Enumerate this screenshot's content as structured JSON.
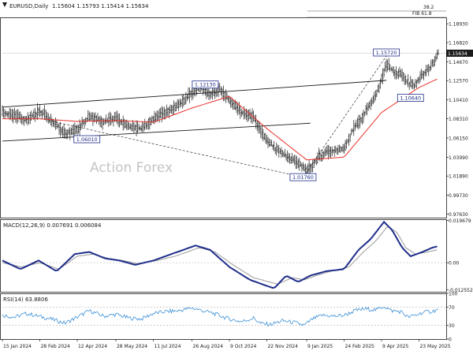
{
  "header": {
    "title": "EURUSD,Daily",
    "ohlc": "1.15604 1.15793 1.15414 1.15634"
  },
  "watermark": "Action Forex",
  "colors": {
    "price": "#1a1a1a",
    "ma": "#e8312a",
    "macd": "#1f2e8a",
    "signal": "#9a9a9a",
    "rsi": "#3b8fd6",
    "callout_border": "#1f2e8a",
    "grid": "#b0b0b0",
    "last_price_bg": "#1a1a1a",
    "last_price_fg": "#ffffff"
  },
  "chart_data": [
    {
      "type": "line",
      "panel": "price",
      "title": "EURUSD,Daily",
      "ylim": [
        0.9723,
        1.1965
      ],
      "y_ticks": [
        "1.18930",
        "1.16820",
        "1.14670",
        "1.12570",
        "1.10410",
        "1.08310",
        "1.06150",
        "1.03990",
        "1.01890",
        "0.99730",
        "0.97630"
      ],
      "y_tick_values": [
        1.1893,
        1.1682,
        1.1467,
        1.1257,
        1.1041,
        1.0831,
        1.0615,
        1.0399,
        1.0189,
        0.9973,
        0.9763
      ],
      "x_ticks": [
        "15 Jan 2024",
        "28 Feb 2024",
        "12 Apr 2024",
        "28 May 2024",
        "11 Jul 2024",
        "26 Aug 2024",
        "9 Oct 2024",
        "22 Nov 2024",
        "9 Jan 2025",
        "24 Feb 2025",
        "9 Apr 2025",
        "23 May 2025"
      ],
      "x_tick_index": [
        0,
        31,
        62,
        94,
        125,
        157,
        188,
        219,
        252,
        283,
        314,
        345
      ],
      "bar_count": 362,
      "series": [
        {
          "kind": "price",
          "anchors": [
            [
              0,
              1.09
            ],
            [
              8,
              1.087
            ],
            [
              20,
              1.082
            ],
            [
              31,
              1.092
            ],
            [
              42,
              1.08
            ],
            [
              52,
              1.066
            ],
            [
              62,
              1.071
            ],
            [
              72,
              1.086
            ],
            [
              84,
              1.08
            ],
            [
              94,
              1.083
            ],
            [
              105,
              1.074
            ],
            [
              115,
              1.072
            ],
            [
              125,
              1.083
            ],
            [
              135,
              1.09
            ],
            [
              146,
              1.098
            ],
            [
              157,
              1.112
            ],
            [
              165,
              1.118
            ],
            [
              172,
              1.11
            ],
            [
              180,
              1.116
            ],
            [
              188,
              1.104
            ],
            [
              198,
              1.09
            ],
            [
              208,
              1.085
            ],
            [
              214,
              1.07
            ],
            [
              219,
              1.058
            ],
            [
              226,
              1.05
            ],
            [
              234,
              1.042
            ],
            [
              242,
              1.036
            ],
            [
              248,
              1.03
            ],
            [
              252,
              1.025
            ],
            [
              257,
              1.031
            ],
            [
              262,
              1.04
            ],
            [
              268,
              1.046
            ],
            [
              276,
              1.048
            ],
            [
              283,
              1.05
            ],
            [
              290,
              1.07
            ],
            [
              296,
              1.08
            ],
            [
              302,
              1.094
            ],
            [
              310,
              1.11
            ],
            [
              314,
              1.128
            ],
            [
              318,
              1.143
            ],
            [
              322,
              1.139
            ],
            [
              326,
              1.134
            ],
            [
              331,
              1.132
            ],
            [
              336,
              1.123
            ],
            [
              341,
              1.12
            ],
            [
              347,
              1.131
            ],
            [
              352,
              1.137
            ],
            [
              357,
              1.146
            ],
            [
              361,
              1.156
            ]
          ]
        },
        {
          "kind": "ma",
          "anchors": [
            [
              0,
              1.083
            ],
            [
              31,
              1.083
            ],
            [
              62,
              1.08
            ],
            [
              94,
              1.081
            ],
            [
              125,
              1.079
            ],
            [
              157,
              1.095
            ],
            [
              188,
              1.108
            ],
            [
              219,
              1.072
            ],
            [
              252,
              1.037
            ],
            [
              283,
              1.04
            ],
            [
              314,
              1.09
            ],
            [
              345,
              1.118
            ],
            [
              361,
              1.128
            ]
          ]
        }
      ],
      "annotations": [
        {
          "text": "1.12130",
          "index": 168,
          "value": 1.1213
        },
        {
          "text": "1.06010",
          "index": 70,
          "value": 1.0601
        },
        {
          "text": "1.01760",
          "index": 249,
          "value": 1.0176
        },
        {
          "text": "1.15720",
          "index": 318,
          "value": 1.1572
        },
        {
          "text": "1.10640",
          "index": 338,
          "value": 1.1064
        }
      ],
      "top_labels": [
        "38.2",
        "FIB 61.8"
      ],
      "last_price": "1.15634"
    },
    {
      "type": "line",
      "panel": "macd",
      "title": "MACD(12,26,9) 0.007691 0.006084",
      "ylim": [
        -0.01355,
        0.02025
      ],
      "y_ticks": [
        "0.019679",
        "0.00",
        "-0.012552"
      ],
      "y_tick_values": [
        0.019679,
        0.0,
        -0.012552
      ],
      "series": [
        {
          "kind": "macd",
          "anchors": [
            [
              0,
              0.001
            ],
            [
              15,
              -0.003
            ],
            [
              30,
              0.001
            ],
            [
              45,
              -0.004
            ],
            [
              60,
              0.004
            ],
            [
              72,
              0.005
            ],
            [
              85,
              0.002
            ],
            [
              97,
              0.001
            ],
            [
              110,
              -0.001
            ],
            [
              125,
              0.001
            ],
            [
              140,
              0.004
            ],
            [
              160,
              0.008
            ],
            [
              172,
              0.006
            ],
            [
              188,
              -0.002
            ],
            [
              205,
              -0.008
            ],
            [
              225,
              -0.012
            ],
            [
              235,
              -0.006
            ],
            [
              245,
              -0.009
            ],
            [
              255,
              -0.006
            ],
            [
              268,
              -0.004
            ],
            [
              283,
              -0.003
            ],
            [
              295,
              0.006
            ],
            [
              305,
              0.011
            ],
            [
              316,
              0.019
            ],
            [
              323,
              0.015
            ],
            [
              331,
              0.007
            ],
            [
              338,
              0.003
            ],
            [
              348,
              0.005
            ],
            [
              356,
              0.007
            ],
            [
              361,
              0.0077
            ]
          ]
        },
        {
          "kind": "signal",
          "anchors": [
            [
              0,
              0.0
            ],
            [
              16,
              -0.002
            ],
            [
              31,
              0.0
            ],
            [
              47,
              -0.003
            ],
            [
              62,
              0.003
            ],
            [
              75,
              0.004
            ],
            [
              88,
              0.002
            ],
            [
              100,
              0.001
            ],
            [
              112,
              -0.0005
            ],
            [
              128,
              0.001
            ],
            [
              143,
              0.003
            ],
            [
              163,
              0.007
            ],
            [
              176,
              0.005
            ],
            [
              191,
              -0.001
            ],
            [
              208,
              -0.007
            ],
            [
              228,
              -0.01
            ],
            [
              240,
              -0.007
            ],
            [
              250,
              -0.008
            ],
            [
              260,
              -0.006
            ],
            [
              272,
              -0.004
            ],
            [
              287,
              -0.002
            ],
            [
              299,
              0.005
            ],
            [
              309,
              0.01
            ],
            [
              319,
              0.017
            ],
            [
              327,
              0.014
            ],
            [
              334,
              0.007
            ],
            [
              342,
              0.004
            ],
            [
              352,
              0.005
            ],
            [
              361,
              0.0061
            ]
          ]
        }
      ]
    },
    {
      "type": "line",
      "panel": "rsi",
      "title": "RSI(14) 63.8806",
      "ylim": [
        0,
        100
      ],
      "y_ticks": [
        "100",
        "70",
        "30",
        "0"
      ],
      "y_tick_values": [
        100,
        70,
        30,
        0
      ],
      "series": [
        {
          "kind": "rsi",
          "anchors": [
            [
              0,
              52
            ],
            [
              10,
              48
            ],
            [
              20,
              56
            ],
            [
              30,
              50
            ],
            [
              40,
              44
            ],
            [
              52,
              35
            ],
            [
              62,
              48
            ],
            [
              72,
              62
            ],
            [
              84,
              50
            ],
            [
              94,
              54
            ],
            [
              105,
              46
            ],
            [
              115,
              44
            ],
            [
              125,
              56
            ],
            [
              135,
              60
            ],
            [
              146,
              62
            ],
            [
              157,
              68
            ],
            [
              166,
              62
            ],
            [
              175,
              56
            ],
            [
              188,
              44
            ],
            [
              198,
              38
            ],
            [
              208,
              46
            ],
            [
              214,
              34
            ],
            [
              222,
              32
            ],
            [
              232,
              40
            ],
            [
              242,
              36
            ],
            [
              250,
              30
            ],
            [
              257,
              44
            ],
            [
              265,
              52
            ],
            [
              275,
              50
            ],
            [
              283,
              52
            ],
            [
              292,
              62
            ],
            [
              300,
              66
            ],
            [
              310,
              64
            ],
            [
              316,
              72
            ],
            [
              322,
              62
            ],
            [
              330,
              60
            ],
            [
              336,
              48
            ],
            [
              342,
              52
            ],
            [
              348,
              58
            ],
            [
              354,
              60
            ],
            [
              361,
              64
            ]
          ]
        }
      ]
    }
  ]
}
